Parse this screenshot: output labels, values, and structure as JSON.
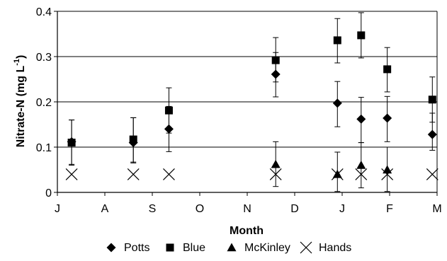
{
  "chart_data": {
    "type": "scatter",
    "title": "",
    "xlabel": "Month",
    "ylabel_main": "Nitrate-N (mg L",
    "ylabel_sup": "-1",
    "ylabel_close": ")",
    "month_ticks": [
      "J",
      "A",
      "S",
      "O",
      "N",
      "D",
      "J",
      "F",
      "M"
    ],
    "ylim": [
      0,
      0.4
    ],
    "yticks": [
      0,
      0.1,
      0.2,
      0.3,
      0.4
    ],
    "ytick_labels": [
      "0",
      "0.1",
      "0.2",
      "0.3",
      "0.4"
    ],
    "grid": "horizontal major lines",
    "legend_position": "bottom",
    "x_units": "months from J (J = 0)",
    "series": [
      {
        "name": "Potts",
        "marker": "diamond",
        "points": [
          {
            "x": 0.3,
            "y": 0.112,
            "err_low": 0.05,
            "err_high": 0.048
          },
          {
            "x": 1.6,
            "y": 0.11,
            "err_low": 0.045,
            "err_high": 0.055
          },
          {
            "x": 2.35,
            "y": 0.14,
            "err_low": 0.05,
            "err_high": 0.05
          },
          {
            "x": 4.6,
            "y": 0.261,
            "err_low": 0.05,
            "err_high": 0.048
          },
          {
            "x": 5.9,
            "y": 0.197,
            "err_low": 0.052,
            "err_high": 0.048
          },
          {
            "x": 6.4,
            "y": 0.162,
            "err_low": 0.052,
            "err_high": 0.048
          },
          {
            "x": 6.95,
            "y": 0.164,
            "err_low": 0.052,
            "err_high": 0.048
          },
          {
            "x": 7.9,
            "y": 0.128,
            "err_low": 0.035,
            "err_high": 0.047
          }
        ]
      },
      {
        "name": "Blue",
        "marker": "square",
        "points": [
          {
            "x": 0.3,
            "y": 0.11,
            "err_low": 0.05,
            "err_high": 0.05
          },
          {
            "x": 1.6,
            "y": 0.117,
            "err_low": 0.05,
            "err_high": 0.048
          },
          {
            "x": 2.35,
            "y": 0.181,
            "err_low": 0.05,
            "err_high": 0.05
          },
          {
            "x": 4.6,
            "y": 0.292,
            "err_low": 0.048,
            "err_high": 0.05
          },
          {
            "x": 5.9,
            "y": 0.336,
            "err_low": 0.05,
            "err_high": 0.048
          },
          {
            "x": 6.4,
            "y": 0.347,
            "err_low": 0.05,
            "err_high": 0.05
          },
          {
            "x": 6.95,
            "y": 0.272,
            "err_low": 0.05,
            "err_high": 0.048
          },
          {
            "x": 7.9,
            "y": 0.205,
            "err_low": 0.05,
            "err_high": 0.05
          }
        ]
      },
      {
        "name": "McKinley",
        "marker": "triangle",
        "points": [
          {
            "x": 4.6,
            "y": 0.062,
            "err_low": 0.049,
            "err_high": 0.05
          },
          {
            "x": 5.9,
            "y": 0.04,
            "err_low": 0.038,
            "err_high": 0.049
          },
          {
            "x": 6.4,
            "y": 0.06,
            "err_low": 0.05,
            "err_high": 0.05
          },
          {
            "x": 6.95,
            "y": 0.05,
            "err_low": 0.048,
            "err_high": 0.05
          }
        ]
      },
      {
        "name": "Hands",
        "marker": "x",
        "points": [
          {
            "x": 0.3,
            "y": 0.04
          },
          {
            "x": 1.6,
            "y": 0.04
          },
          {
            "x": 2.35,
            "y": 0.04
          },
          {
            "x": 4.6,
            "y": 0.04
          },
          {
            "x": 5.9,
            "y": 0.04
          },
          {
            "x": 6.4,
            "y": 0.04
          },
          {
            "x": 6.95,
            "y": 0.04
          },
          {
            "x": 7.9,
            "y": 0.04
          }
        ]
      }
    ]
  }
}
